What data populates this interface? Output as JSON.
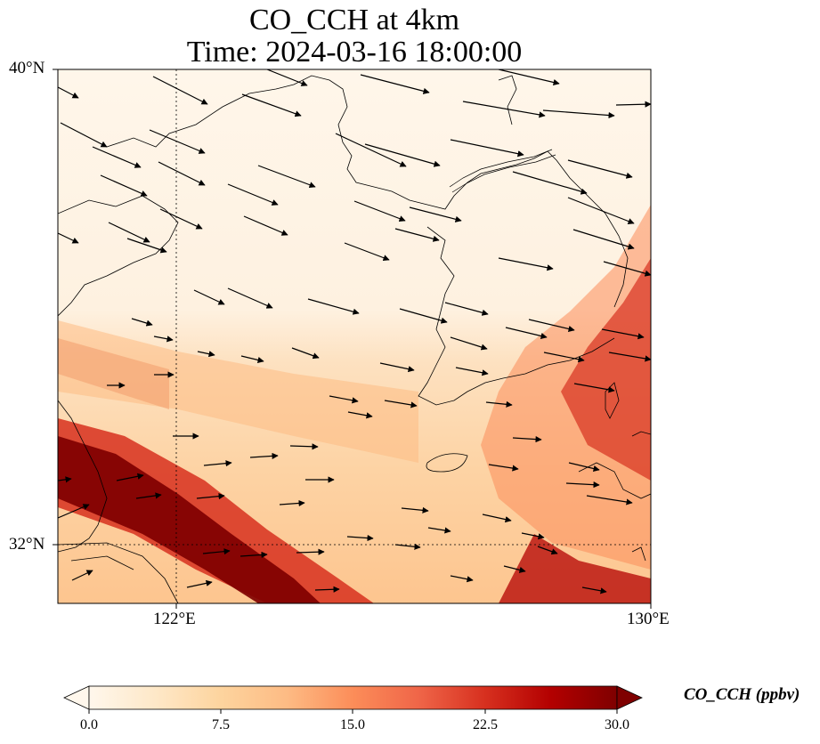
{
  "title": {
    "line1": "CO_CCH at 4km",
    "line2": "Time: 2024-03-16 18:00:00"
  },
  "map": {
    "lon_range": [
      120,
      130
    ],
    "lat_range": [
      31,
      40
    ],
    "lat_ticks": [
      "40°N",
      "32°N"
    ],
    "lon_ticks": [
      "122°E",
      "130°E"
    ],
    "gridlines": {
      "lon": 122,
      "lat": 32,
      "style": "dotted"
    },
    "field": "CO_CCH",
    "overlay": "wind vectors"
  },
  "colorbar": {
    "title": "CO_CCH (ppbv)",
    "ticks": [
      "0.0",
      "7.5",
      "15.0",
      "22.5",
      "30.0"
    ],
    "min": 0,
    "max": 30,
    "extend": "both",
    "colormap": [
      "#fff7ec",
      "#fee8c8",
      "#fdd49e",
      "#fdbb84",
      "#fc8d59",
      "#ef6548",
      "#d7301f",
      "#b30000",
      "#7f0000"
    ]
  }
}
